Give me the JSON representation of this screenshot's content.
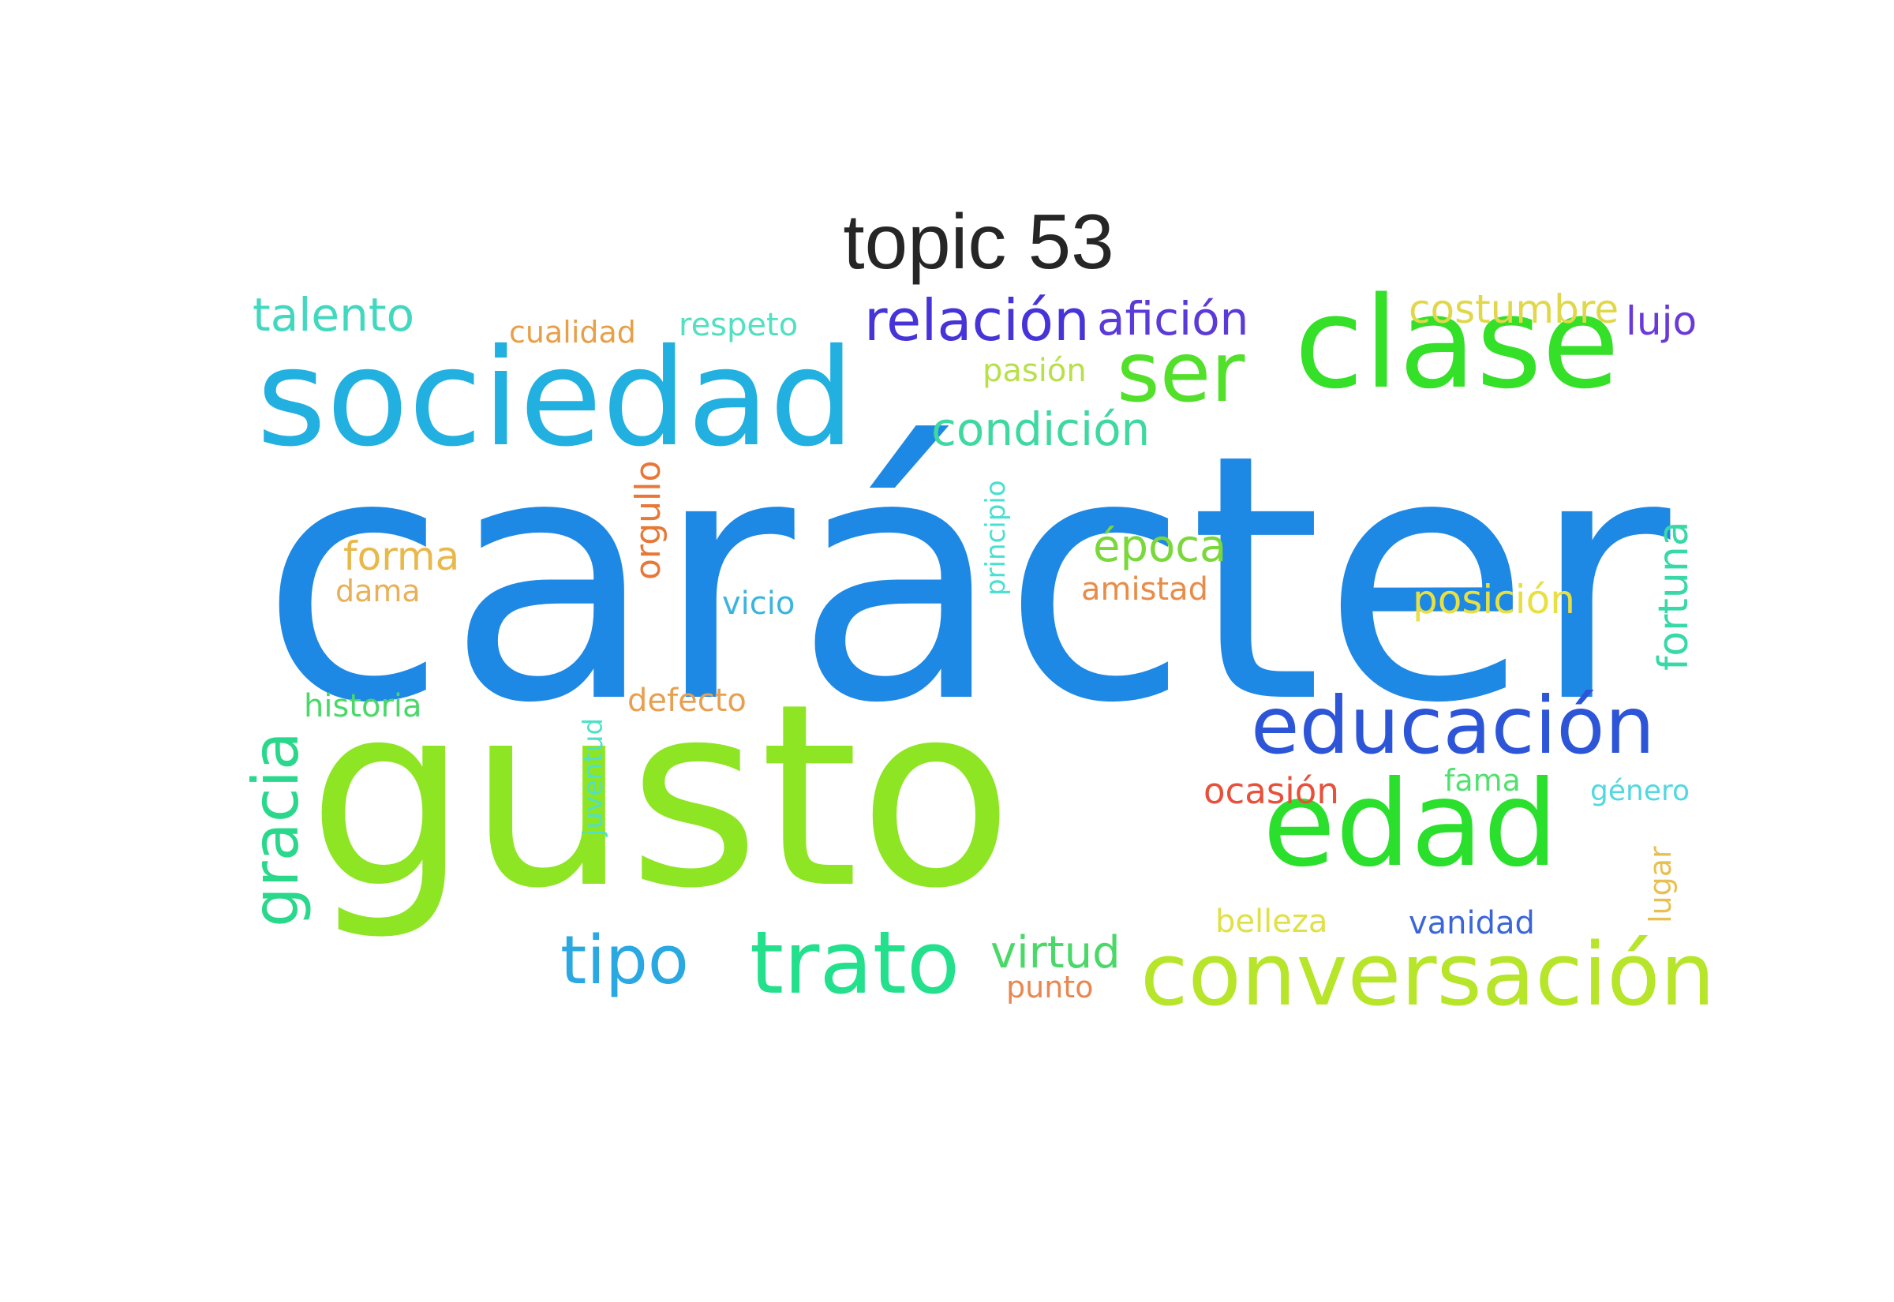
{
  "title": "topic 53",
  "words": [
    {
      "text": "carácter",
      "color": "#1e88e5"
    },
    {
      "text": "gusto",
      "color": "#8ee524"
    },
    {
      "text": "sociedad",
      "color": "#22b0e0"
    },
    {
      "text": "clase",
      "color": "#34e028"
    },
    {
      "text": "edad",
      "color": "#2be02d"
    },
    {
      "text": "educación",
      "color": "#2d55d8"
    },
    {
      "text": "conversación",
      "color": "#b6e52a"
    },
    {
      "text": "trato",
      "color": "#22e08c"
    },
    {
      "text": "tipo",
      "color": "#2aa8e2"
    },
    {
      "text": "ser",
      "color": "#52e02a"
    },
    {
      "text": "relación",
      "color": "#4634d8"
    },
    {
      "text": "afición",
      "color": "#5a3ad8"
    },
    {
      "text": "gracia",
      "color": "#2ad88c"
    },
    {
      "text": "talento",
      "color": "#42d8c0"
    },
    {
      "text": "condición",
      "color": "#3ed8a0"
    },
    {
      "text": "costumbre",
      "color": "#e0d84a"
    },
    {
      "text": "lujo",
      "color": "#6a3ad8"
    },
    {
      "text": "época",
      "color": "#7ad83a"
    },
    {
      "text": "posición",
      "color": "#e8e042"
    },
    {
      "text": "fortuna",
      "color": "#38d8a8"
    },
    {
      "text": "virtud",
      "color": "#4ad868"
    },
    {
      "text": "ocasión",
      "color": "#e8503a"
    },
    {
      "text": "forma",
      "color": "#e8b84a"
    },
    {
      "text": "orgullo",
      "color": "#e87838"
    },
    {
      "text": "cualidad",
      "color": "#e8a048"
    },
    {
      "text": "respeto",
      "color": "#52e0c0"
    },
    {
      "text": "pasión",
      "color": "#b8e04a"
    },
    {
      "text": "principio",
      "color": "#48e0d0"
    },
    {
      "text": "dama",
      "color": "#e8b058"
    },
    {
      "text": "vicio",
      "color": "#3ab4e0"
    },
    {
      "text": "amistad",
      "color": "#e88c48"
    },
    {
      "text": "historia",
      "color": "#4ad868"
    },
    {
      "text": "defecto",
      "color": "#e8a050"
    },
    {
      "text": "juventud",
      "color": "#50e0c8"
    },
    {
      "text": "fama",
      "color": "#52e070"
    },
    {
      "text": "género",
      "color": "#52d8e0"
    },
    {
      "text": "lugar",
      "color": "#e8c050"
    },
    {
      "text": "belleza",
      "color": "#e0e048"
    },
    {
      "text": "vanidad",
      "color": "#3a66d8"
    },
    {
      "text": "punto",
      "color": "#e88850"
    }
  ]
}
